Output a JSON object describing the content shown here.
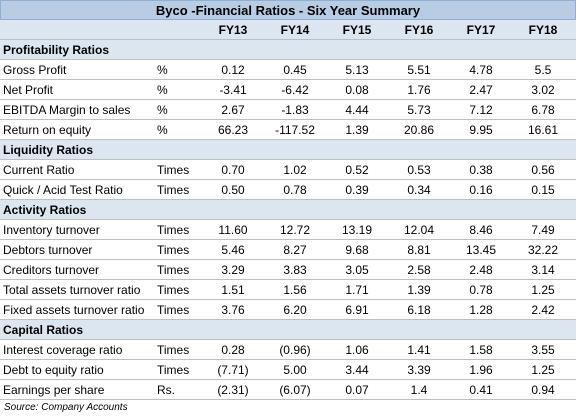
{
  "title": "Byco -Financial Ratios - Six Year Summary",
  "years": [
    "FY13",
    "FY14",
    "FY15",
    "FY16",
    "FY17",
    "FY18"
  ],
  "sections": [
    {
      "name": "Profitability Ratios",
      "rows": [
        {
          "label": "Gross Profit",
          "unit": "%",
          "values": [
            "0.12",
            "0.45",
            "5.13",
            "5.51",
            "4.78",
            "5.5"
          ]
        },
        {
          "label": "Net Profit",
          "unit": "%",
          "values": [
            "-3.41",
            "-6.42",
            "0.08",
            "1.76",
            "2.47",
            "3.02"
          ]
        },
        {
          "label": "EBITDA Margin to sales",
          "unit": "%",
          "values": [
            "2.67",
            "-1.83",
            "4.44",
            "5.73",
            "7.12",
            "6.78"
          ]
        },
        {
          "label": "Return on equity",
          "unit": "%",
          "values": [
            "66.23",
            "-117.52",
            "1.39",
            "20.86",
            "9.95",
            "16.61"
          ]
        }
      ]
    },
    {
      "name": "Liquidity Ratios",
      "rows": [
        {
          "label": "Current Ratio",
          "unit": "Times",
          "values": [
            "0.70",
            "1.02",
            "0.52",
            "0.53",
            "0.38",
            "0.56"
          ]
        },
        {
          "label": "Quick / Acid Test Ratio",
          "unit": "Times",
          "values": [
            "0.50",
            "0.78",
            "0.39",
            "0.34",
            "0.16",
            "0.15"
          ]
        }
      ]
    },
    {
      "name": "Activity Ratios",
      "rows": [
        {
          "label": "Inventory turnover",
          "unit": "Times",
          "values": [
            "11.60",
            "12.72",
            "13.19",
            "12.04",
            "8.46",
            "7.49"
          ]
        },
        {
          "label": "Debtors turnover",
          "unit": "Times",
          "values": [
            "5.46",
            "8.27",
            "9.68",
            "8.81",
            "13.45",
            "32.22"
          ]
        },
        {
          "label": "Creditors turnover",
          "unit": "Times",
          "values": [
            "3.29",
            "3.83",
            "3.05",
            "2.58",
            "2.48",
            "3.14"
          ]
        },
        {
          "label": "Total assets turnover ratio",
          "unit": "Times",
          "values": [
            "1.51",
            "1.56",
            "1.71",
            "1.39",
            "0.78",
            "1.25"
          ]
        },
        {
          "label": "Fixed assets turnover ratio",
          "unit": "Times",
          "values": [
            "3.76",
            "6.20",
            "6.91",
            "6.18",
            "1.28",
            "2.42"
          ]
        }
      ]
    },
    {
      "name": "Capital Ratios",
      "rows": [
        {
          "label": "Interest coverage ratio",
          "unit": "Times",
          "values": [
            "0.28",
            "(0.96)",
            "1.06",
            "1.41",
            "1.58",
            "3.55"
          ]
        },
        {
          "label": "Debt to equity ratio",
          "unit": "Times",
          "values": [
            "(7.71)",
            "5.00",
            "3.44",
            "3.39",
            "1.96",
            "1.25"
          ]
        },
        {
          "label": "Earnings per share",
          "unit": "Rs.",
          "values": [
            "(2.31)",
            "(6.07)",
            "0.07",
            "1.4",
            "0.41",
            "0.94"
          ]
        }
      ]
    }
  ],
  "source": "Source: Company Accounts",
  "colors": {
    "header_bg": "#dce6f1",
    "title_bg": "#b8cce4",
    "gridline": "#bfbfbf"
  }
}
